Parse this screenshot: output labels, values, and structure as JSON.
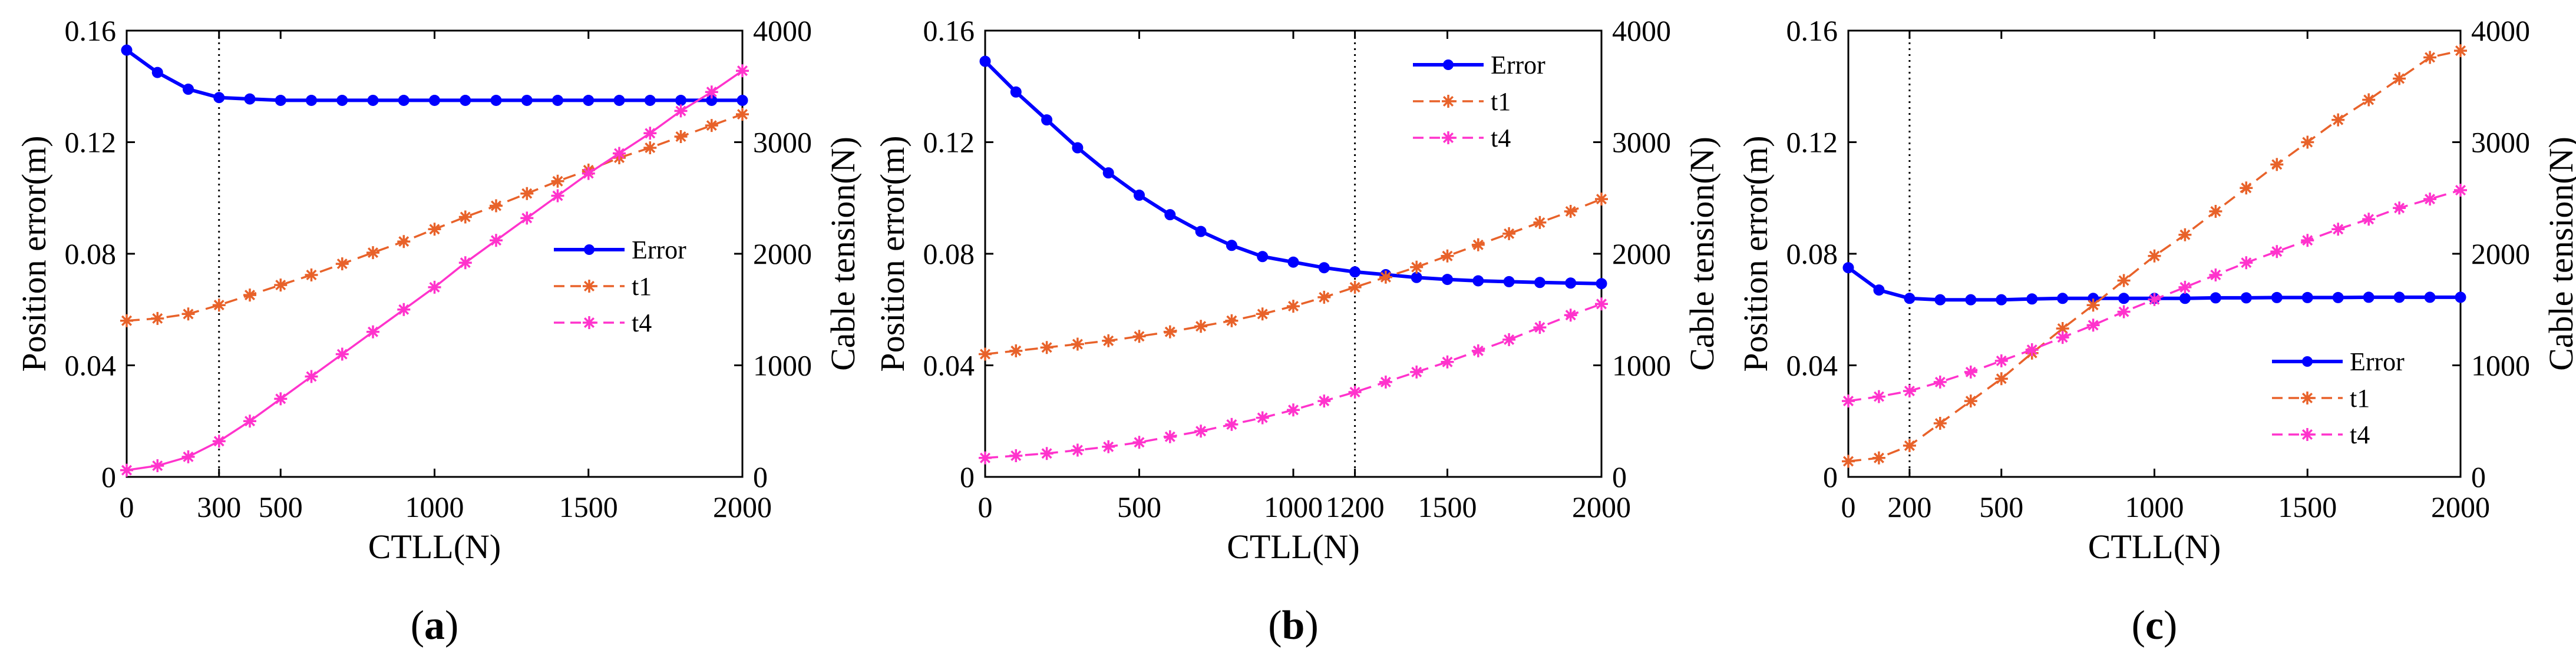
{
  "colors": {
    "error": "#0000ff",
    "t1": "#e8622a",
    "t4": "#ff33cc",
    "axis": "#000000"
  },
  "chart_data": [
    {
      "id": "a",
      "type": "line",
      "panel_label": {
        "open": "(",
        "letter": "a",
        "close": ")"
      },
      "xlabel": "CTLL(N)",
      "ylabel_left": "Position error(m)",
      "ylabel_right": "Cable tension(N)",
      "xlim": [
        0,
        2000
      ],
      "ylim_left": [
        0,
        0.16
      ],
      "ylim_right": [
        0,
        4000
      ],
      "xticks": [
        0,
        300,
        500,
        1000,
        1500,
        2000
      ],
      "xtick_labels": [
        "0",
        "300",
        "500",
        "1000",
        "1500",
        "2000"
      ],
      "yticks_left_labels": [
        "0",
        "0.04",
        "0.08",
        "0.12",
        "0.16"
      ],
      "yticks_right_labels": [
        "0",
        "1000",
        "2000",
        "3000",
        "4000"
      ],
      "vline_x": 300,
      "legend_position": "lower-right",
      "series": [
        {
          "name": "Error",
          "axis": "left",
          "marker": "dot",
          "x": [
            0,
            100,
            200,
            300,
            400,
            500,
            600,
            700,
            800,
            900,
            1000,
            1100,
            1200,
            1300,
            1400,
            1500,
            1600,
            1700,
            1800,
            1900,
            2000
          ],
          "values": [
            0.153,
            0.145,
            0.139,
            0.136,
            0.1355,
            0.135,
            0.135,
            0.135,
            0.135,
            0.135,
            0.135,
            0.135,
            0.135,
            0.135,
            0.135,
            0.135,
            0.135,
            0.135,
            0.135,
            0.135,
            0.135
          ]
        },
        {
          "name": "t1",
          "axis": "right",
          "marker": "star",
          "x": [
            0,
            100,
            200,
            300,
            400,
            500,
            600,
            700,
            800,
            900,
            1000,
            1100,
            1200,
            1300,
            1400,
            1500,
            1600,
            1700,
            1800,
            1900,
            2000
          ],
          "values": [
            1400,
            1420,
            1460,
            1540,
            1630,
            1720,
            1810,
            1910,
            2010,
            2110,
            2220,
            2330,
            2430,
            2540,
            2650,
            2750,
            2860,
            2950,
            3050,
            3150,
            3250
          ]
        },
        {
          "name": "t4",
          "axis": "right",
          "marker": "star",
          "x": [
            0,
            100,
            200,
            300,
            400,
            500,
            600,
            700,
            800,
            900,
            1000,
            1100,
            1200,
            1300,
            1400,
            1500,
            1600,
            1700,
            1800,
            1900,
            2000
          ],
          "values": [
            60,
            100,
            180,
            320,
            500,
            700,
            900,
            1100,
            1300,
            1500,
            1700,
            1920,
            2120,
            2320,
            2520,
            2720,
            2900,
            3080,
            3280,
            3450,
            3640
          ]
        }
      ]
    },
    {
      "id": "b",
      "type": "line",
      "panel_label": {
        "open": "(",
        "letter": "b",
        "close": ")"
      },
      "xlabel": "CTLL(N)",
      "ylabel_left": "Position error(m)",
      "ylabel_right": "Cable tension(N)",
      "xlim": [
        0,
        2000
      ],
      "ylim_left": [
        0,
        0.16
      ],
      "ylim_right": [
        0,
        4000
      ],
      "xticks": [
        0,
        500,
        1000,
        1200,
        1500,
        2000
      ],
      "xtick_labels": [
        "0",
        "500",
        "1000",
        "1200",
        "1500",
        "2000"
      ],
      "yticks_left_labels": [
        "0",
        "0.04",
        "0.08",
        "0.12",
        "0.16"
      ],
      "yticks_right_labels": [
        "0",
        "1000",
        "2000",
        "3000",
        "4000"
      ],
      "vline_x": 1200,
      "legend_position": "top-right",
      "series": [
        {
          "name": "Error",
          "axis": "left",
          "marker": "dot",
          "x": [
            0,
            100,
            200,
            300,
            400,
            500,
            600,
            700,
            800,
            900,
            1000,
            1100,
            1200,
            1300,
            1400,
            1500,
            1600,
            1700,
            1800,
            1900,
            2000
          ],
          "values": [
            0.149,
            0.138,
            0.128,
            0.118,
            0.109,
            0.101,
            0.094,
            0.088,
            0.083,
            0.079,
            0.077,
            0.075,
            0.0735,
            0.0725,
            0.0715,
            0.0708,
            0.0703,
            0.07,
            0.0697,
            0.0695,
            0.0693
          ]
        },
        {
          "name": "t1",
          "axis": "right",
          "marker": "star",
          "x": [
            0,
            100,
            200,
            300,
            400,
            500,
            600,
            700,
            800,
            900,
            1000,
            1100,
            1200,
            1300,
            1400,
            1500,
            1600,
            1700,
            1800,
            1900,
            2000
          ],
          "values": [
            1100,
            1130,
            1160,
            1190,
            1220,
            1260,
            1300,
            1350,
            1400,
            1460,
            1530,
            1610,
            1700,
            1790,
            1880,
            1980,
            2080,
            2180,
            2280,
            2380,
            2490
          ]
        },
        {
          "name": "t4",
          "axis": "right",
          "marker": "star",
          "x": [
            0,
            100,
            200,
            300,
            400,
            500,
            600,
            700,
            800,
            900,
            1000,
            1100,
            1200,
            1300,
            1400,
            1500,
            1600,
            1700,
            1800,
            1900,
            2000
          ],
          "values": [
            170,
            190,
            210,
            240,
            270,
            310,
            360,
            410,
            470,
            530,
            600,
            680,
            760,
            850,
            940,
            1030,
            1130,
            1230,
            1340,
            1450,
            1550
          ]
        }
      ]
    },
    {
      "id": "c",
      "type": "line",
      "panel_label": {
        "open": "(",
        "letter": "c",
        "close": ")"
      },
      "xlabel": "CTLL(N)",
      "ylabel_left": "Position error(m)",
      "ylabel_right": "Cable tension(N)",
      "xlim": [
        0,
        2000
      ],
      "ylim_left": [
        0,
        0.16
      ],
      "ylim_right": [
        0,
        4000
      ],
      "xticks": [
        0,
        200,
        500,
        1000,
        1500,
        2000
      ],
      "xtick_labels": [
        "0",
        "200",
        "500",
        "1000",
        "1500",
        "2000"
      ],
      "yticks_left_labels": [
        "0",
        "0.04",
        "0.08",
        "0.12",
        "0.16"
      ],
      "yticks_right_labels": [
        "0",
        "1000",
        "2000",
        "3000",
        "4000"
      ],
      "vline_x": 200,
      "legend_position": "lower-right",
      "series": [
        {
          "name": "Error",
          "axis": "left",
          "marker": "dot",
          "x": [
            0,
            100,
            200,
            300,
            400,
            500,
            600,
            700,
            800,
            900,
            1000,
            1100,
            1200,
            1300,
            1400,
            1500,
            1600,
            1700,
            1800,
            1900,
            2000
          ],
          "values": [
            0.075,
            0.067,
            0.064,
            0.0635,
            0.0635,
            0.0635,
            0.0638,
            0.064,
            0.064,
            0.064,
            0.064,
            0.064,
            0.0642,
            0.0642,
            0.0643,
            0.0643,
            0.0643,
            0.0644,
            0.0644,
            0.0644,
            0.0644
          ]
        },
        {
          "name": "t1",
          "axis": "right",
          "marker": "star",
          "x": [
            0,
            100,
            200,
            300,
            400,
            500,
            600,
            700,
            800,
            900,
            1000,
            1100,
            1200,
            1300,
            1400,
            1500,
            1600,
            1700,
            1800,
            1900,
            2000
          ],
          "values": [
            140,
            170,
            280,
            480,
            680,
            880,
            1110,
            1330,
            1540,
            1760,
            1980,
            2170,
            2380,
            2590,
            2800,
            3000,
            3200,
            3380,
            3570,
            3760,
            3820
          ]
        },
        {
          "name": "t4",
          "axis": "right",
          "marker": "star",
          "x": [
            0,
            100,
            200,
            300,
            400,
            500,
            600,
            700,
            800,
            900,
            1000,
            1100,
            1200,
            1300,
            1400,
            1500,
            1600,
            1700,
            1800,
            1900,
            2000
          ],
          "values": [
            680,
            720,
            770,
            850,
            940,
            1040,
            1140,
            1250,
            1360,
            1480,
            1590,
            1700,
            1810,
            1920,
            2020,
            2120,
            2220,
            2310,
            2410,
            2490,
            2570
          ]
        }
      ]
    }
  ]
}
